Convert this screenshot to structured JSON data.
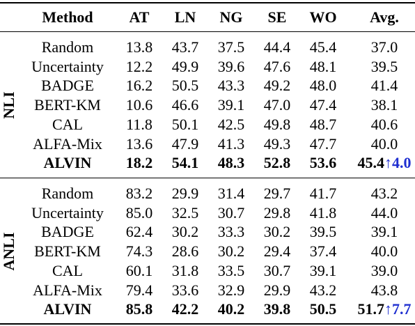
{
  "table": {
    "header": [
      "Method",
      "AT",
      "LN",
      "NG",
      "SE",
      "WO",
      "Avg."
    ],
    "groups": [
      {
        "label": "NLI",
        "gain": "↑4.0",
        "rows": [
          [
            "Random",
            "13.8",
            "43.7",
            "37.5",
            "44.4",
            "45.4",
            "37.0"
          ],
          [
            "Uncertainty",
            "12.2",
            "49.9",
            "39.6",
            "47.6",
            "48.1",
            "39.5"
          ],
          [
            "BADGE",
            "16.2",
            "50.5",
            "43.3",
            "49.2",
            "48.0",
            "41.4"
          ],
          [
            "BERT-KM",
            "10.6",
            "46.6",
            "39.1",
            "47.0",
            "47.4",
            "38.1"
          ],
          [
            "CAL",
            "11.8",
            "50.1",
            "42.5",
            "49.8",
            "48.7",
            "40.6"
          ],
          [
            "ALFA-Mix",
            "13.6",
            "47.9",
            "41.3",
            "49.3",
            "47.7",
            "40.0"
          ],
          [
            "ALVIN",
            "18.2",
            "54.1",
            "48.3",
            "52.8",
            "53.6",
            "45.4"
          ]
        ]
      },
      {
        "label": "ANLI",
        "gain": "↑7.7",
        "rows": [
          [
            "Random",
            "83.2",
            "29.9",
            "31.4",
            "29.7",
            "41.7",
            "43.2"
          ],
          [
            "Uncertainty",
            "85.0",
            "32.5",
            "30.7",
            "29.8",
            "41.8",
            "44.0"
          ],
          [
            "BADGE",
            "62.4",
            "30.2",
            "33.3",
            "30.2",
            "39.5",
            "39.1"
          ],
          [
            "BERT-KM",
            "74.3",
            "28.6",
            "30.2",
            "29.4",
            "37.4",
            "40.0"
          ],
          [
            "CAL",
            "60.1",
            "31.8",
            "33.5",
            "30.7",
            "39.1",
            "39.0"
          ],
          [
            "ALFA-Mix",
            "79.4",
            "33.6",
            "32.9",
            "29.9",
            "43.2",
            "43.8"
          ],
          [
            "ALVIN",
            "85.8",
            "42.2",
            "40.2",
            "39.8",
            "50.5",
            "51.7"
          ]
        ]
      }
    ]
  }
}
